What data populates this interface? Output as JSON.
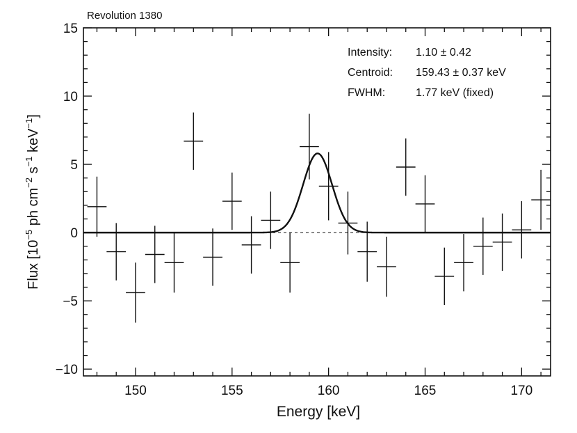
{
  "chart_data": {
    "type": "scatter",
    "title": "Revolution 1380",
    "xlabel": "Energy [keV]",
    "ylabel": {
      "part1": "Flux [10",
      "sup1": "−5",
      "part2": " ph cm",
      "sup2": "−2",
      "part3": " s",
      "sup3": "−1",
      "part4": " keV",
      "sup4": "−1",
      "part5": "]"
    },
    "xlim": [
      147.3,
      171.5
    ],
    "ylim": [
      -10.5,
      15
    ],
    "x_major_ticks": [
      150,
      155,
      160,
      165,
      170
    ],
    "x_tick_labels": [
      "150",
      "155",
      "160",
      "165",
      "170"
    ],
    "y_major_ticks": [
      -10,
      -5,
      0,
      5,
      10,
      15
    ],
    "y_tick_labels": [
      "−10",
      "−5",
      "0",
      "5",
      "10",
      "15"
    ],
    "x_minor_step": 1,
    "y_minor_step": 1,
    "series": [
      {
        "name": "data",
        "x_halfwidth": 0.5,
        "x": [
          148,
          149,
          150,
          151,
          152,
          153,
          154,
          155,
          156,
          157,
          158,
          159,
          160,
          161,
          162,
          163,
          164,
          165,
          166,
          167,
          168,
          169,
          170,
          171
        ],
        "y": [
          1.9,
          -1.4,
          -4.4,
          -1.6,
          -2.2,
          6.7,
          -1.8,
          2.3,
          -0.9,
          0.9,
          -2.2,
          6.3,
          3.4,
          0.7,
          -1.4,
          -2.5,
          4.8,
          2.1,
          -3.2,
          -2.2,
          -1.0,
          -0.7,
          0.2,
          2.4
        ],
        "err": [
          2.2,
          2.1,
          2.2,
          2.1,
          2.2,
          2.1,
          2.1,
          2.1,
          2.1,
          2.1,
          2.2,
          2.4,
          2.5,
          2.3,
          2.2,
          2.2,
          2.1,
          2.1,
          2.1,
          2.1,
          2.1,
          2.1,
          2.1,
          2.2
        ]
      }
    ],
    "model": {
      "name": "gaussian fit",
      "amplitude": 5.8,
      "centroid": 159.43,
      "fwhm": 1.77
    },
    "zero_line": "dashed",
    "legend": {
      "rows": [
        {
          "label": "Intensity:",
          "value": "1.10 ± 0.42"
        },
        {
          "label": "Centroid:",
          "value": "159.43 ± 0.37 keV"
        },
        {
          "label": "FWHM:",
          "value": "1.77 keV (fixed)"
        }
      ],
      "placement": "top-right"
    }
  }
}
